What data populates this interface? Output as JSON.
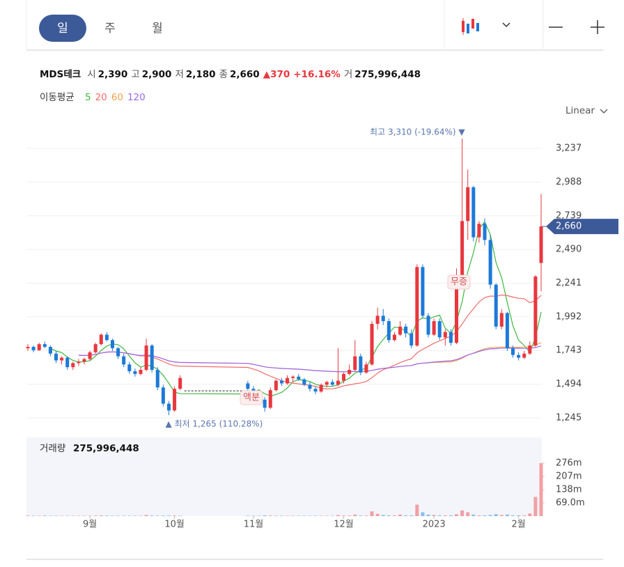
{
  "tabs": [
    "일",
    "주",
    "월"
  ],
  "header": {
    "name": "MDS테크",
    "fields": [
      {
        "label": "시",
        "value": "2,390"
      },
      {
        "label": "고",
        "value": "2,900"
      },
      {
        "label": "저",
        "value": "2,180"
      },
      {
        "label": "종",
        "value": "2,660"
      }
    ],
    "change": "▲370",
    "change_pct": "+16.16%",
    "volume_label": "거",
    "volume": "275,996,448"
  },
  "chart_data": {
    "type": "candlestick",
    "title": "이동평균",
    "scale": "Linear",
    "categories": [
      null,
      null,
      null,
      null,
      null,
      null,
      null,
      null,
      null,
      null,
      null,
      "9월",
      null,
      null,
      null,
      null,
      null,
      null,
      null,
      null,
      null,
      null,
      null,
      null,
      null,
      null,
      "10월",
      null,
      null,
      null,
      null,
      null,
      null,
      null,
      null,
      null,
      null,
      null,
      null,
      null,
      "11월",
      null,
      null,
      null,
      null,
      null,
      null,
      null,
      null,
      null,
      null,
      null,
      null,
      null,
      null,
      null,
      "12월",
      null,
      null,
      null,
      null,
      null,
      null,
      null,
      null,
      null,
      null,
      null,
      null,
      null,
      null,
      null,
      "2023",
      null,
      null,
      null,
      null,
      null,
      null,
      null,
      null,
      null,
      null,
      null,
      null,
      null,
      null,
      "2월",
      null,
      null,
      null,
      null
    ],
    "open": [
      1760,
      1770,
      1745,
      1790,
      1770,
      1720,
      1670,
      1690,
      1620,
      1650,
      1660,
      1680,
      1730,
      1790,
      1860,
      1820,
      1760,
      1700,
      1640,
      1590,
      1570,
      1600,
      1780,
      1600,
      1470,
      1350,
      1300,
      1460,
      null,
      null,
      null,
      null,
      null,
      null,
      null,
      null,
      null,
      null,
      null,
      1500,
      1460,
      1420,
      1380,
      1320,
      1450,
      1520,
      1500,
      1540,
      1550,
      1530,
      1490,
      1460,
      1440,
      1490,
      1510,
      1490,
      1520,
      1570,
      1600,
      1700,
      1580,
      1640,
      1940,
      2000,
      1960,
      1820,
      1860,
      1920,
      1870,
      1780,
      2360,
      2000,
      1860,
      1960,
      1840,
      1880,
      1800,
      2300,
      2700,
      2950,
      2580,
      2680,
      2560,
      2230,
      1920,
      2020,
      1760,
      1710,
      1690,
      1720,
      1780,
      2390
    ],
    "high": [
      1790,
      1780,
      1800,
      1810,
      1780,
      1740,
      1700,
      1700,
      1660,
      1680,
      1690,
      1740,
      1800,
      1870,
      1880,
      1830,
      1770,
      1720,
      1660,
      1610,
      1620,
      1830,
      1790,
      1620,
      1490,
      1370,
      1480,
      1560,
      null,
      null,
      null,
      null,
      null,
      null,
      null,
      null,
      null,
      null,
      null,
      1520,
      1480,
      1440,
      1400,
      1470,
      1530,
      1540,
      1560,
      1560,
      1570,
      1540,
      1510,
      1480,
      1500,
      1520,
      1530,
      1760,
      1580,
      1640,
      1820,
      1720,
      1660,
      1960,
      2060,
      2050,
      1980,
      1880,
      1960,
      1940,
      1900,
      2380,
      2380,
      2020,
      1980,
      1980,
      1900,
      1900,
      2350,
      3310,
      3080,
      2960,
      2700,
      2720,
      2600,
      2240,
      2050,
      2030,
      1780,
      1730,
      1740,
      1810,
      2300,
      2900
    ],
    "low": [
      1740,
      1730,
      1740,
      1760,
      1700,
      1650,
      1640,
      1600,
      1600,
      1630,
      1640,
      1670,
      1720,
      1780,
      1810,
      1740,
      1680,
      1620,
      1570,
      1550,
      1560,
      1590,
      1580,
      1450,
      1330,
      1265,
      1290,
      1450,
      null,
      null,
      null,
      null,
      null,
      null,
      null,
      null,
      null,
      null,
      null,
      1440,
      1400,
      1360,
      1290,
      1310,
      1440,
      1480,
      1490,
      1510,
      1520,
      1480,
      1440,
      1420,
      1430,
      1470,
      1480,
      1480,
      1500,
      1560,
      1590,
      1560,
      1570,
      1630,
      1900,
      1930,
      1800,
      1810,
      1850,
      1840,
      1760,
      1770,
      1980,
      1840,
      1850,
      1820,
      1780,
      1780,
      1790,
      2280,
      2560,
      2550,
      2540,
      2520,
      2200,
      1900,
      1900,
      1740,
      1690,
      1670,
      1680,
      1710,
      1770,
      2180
    ],
    "close": [
      1770,
      1745,
      1790,
      1770,
      1720,
      1670,
      1690,
      1620,
      1650,
      1660,
      1680,
      1730,
      1790,
      1860,
      1820,
      1760,
      1700,
      1640,
      1590,
      1570,
      1600,
      1780,
      1600,
      1470,
      1350,
      1300,
      1460,
      1540,
      null,
      null,
      null,
      null,
      null,
      null,
      null,
      null,
      null,
      null,
      null,
      1460,
      1420,
      1380,
      1320,
      1450,
      1520,
      1500,
      1540,
      1550,
      1530,
      1490,
      1460,
      1440,
      1490,
      1510,
      1490,
      1520,
      1570,
      1600,
      1700,
      1580,
      1640,
      1940,
      2000,
      1960,
      1820,
      1860,
      1920,
      1870,
      1780,
      2360,
      2000,
      1860,
      1960,
      1840,
      1880,
      1800,
      2300,
      2700,
      2950,
      2580,
      2680,
      2560,
      2230,
      1920,
      2020,
      1760,
      1710,
      1690,
      1720,
      1780,
      2290,
      2660
    ],
    "volume": [
      3,
      2,
      2,
      3,
      2,
      2,
      2,
      2,
      2,
      2,
      2,
      2,
      3,
      4,
      3,
      2,
      2,
      2,
      2,
      2,
      2,
      6,
      3,
      2,
      3,
      3,
      3,
      2,
      null,
      null,
      null,
      null,
      null,
      null,
      null,
      null,
      null,
      null,
      null,
      2,
      2,
      2,
      4,
      3,
      2,
      2,
      2,
      2,
      2,
      2,
      2,
      2,
      2,
      2,
      2,
      6,
      3,
      3,
      8,
      3,
      3,
      25,
      12,
      6,
      4,
      4,
      8,
      4,
      4,
      60,
      20,
      8,
      6,
      4,
      4,
      4,
      10,
      30,
      20,
      8,
      4,
      4,
      6,
      10,
      6,
      8,
      4,
      4,
      4,
      14,
      100,
      276
    ],
    "up_color": "#e8373e",
    "down_color": "#1d7ad8",
    "up_volume_color": "#f0a0a4",
    "down_volume_color": "#8bbcef",
    "ylim": [
      1116,
      3407
    ],
    "yticks": [
      {
        "value": 1245,
        "label": "1,245"
      },
      {
        "value": 1494,
        "label": "1,494"
      },
      {
        "value": 1743,
        "label": "1,743"
      },
      {
        "value": 1992,
        "label": "1,992"
      },
      {
        "value": 2241,
        "label": "2,241"
      },
      {
        "value": 2490,
        "label": "2,490"
      },
      {
        "value": 2739,
        "label": "2,739"
      },
      {
        "value": 2988,
        "label": "2,988"
      },
      {
        "value": 3237,
        "label": "3,237"
      }
    ],
    "volume_lim": [
      0,
      410
    ],
    "volume_ticks": [
      {
        "value": 69,
        "label": "69.0m"
      },
      {
        "value": 138,
        "label": "138m"
      },
      {
        "value": 207,
        "label": "207m"
      },
      {
        "value": 276,
        "label": "276m"
      }
    ],
    "grid": true,
    "moving_averages": [
      {
        "period": 5,
        "color": "#3db83d"
      },
      {
        "period": 20,
        "color": "#f06a6a"
      },
      {
        "period": 60,
        "color": "#f0a050"
      },
      {
        "period": 120,
        "color": "#9a66ee"
      }
    ],
    "current_price": {
      "value": 2660,
      "label": "2,660"
    },
    "annotations": {
      "high": "최고 3,310 (-19.64%) ▼",
      "low": "▲ 최저 1,265 (110.28%)",
      "bonus": "무증",
      "split": "액분"
    },
    "volume_title": "거래량",
    "volume_value": "275,996,448"
  }
}
